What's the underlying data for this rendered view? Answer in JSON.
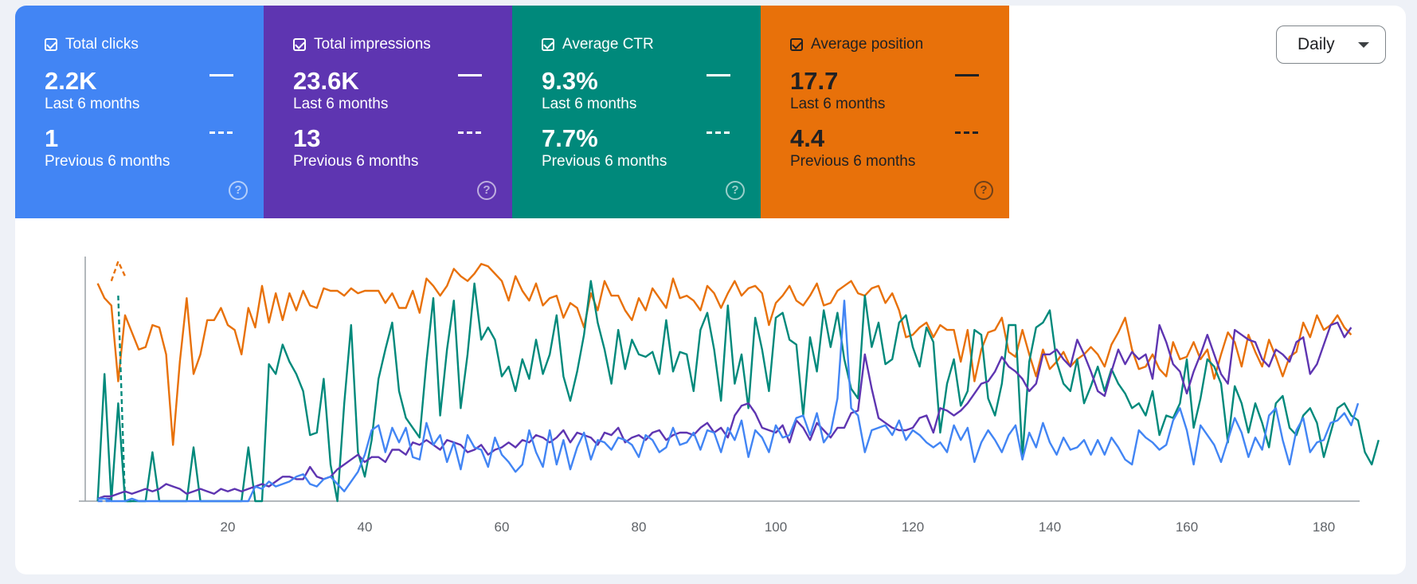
{
  "tiles": [
    {
      "id": "clicks",
      "label": "Total clicks",
      "current_value": "2.2K",
      "current_caption": "Last 6 months",
      "previous_value": "1",
      "previous_caption": "Previous 6 months",
      "color": "#4285f4",
      "text_color": "#ffffff"
    },
    {
      "id": "impressions",
      "label": "Total impressions",
      "current_value": "23.6K",
      "current_caption": "Last 6 months",
      "previous_value": "13",
      "previous_caption": "Previous 6 months",
      "color": "#5e35b1",
      "text_color": "#ffffff"
    },
    {
      "id": "ctr",
      "label": "Average CTR",
      "current_value": "9.3%",
      "current_caption": "Last 6 months",
      "previous_value": "7.7%",
      "previous_caption": "Previous 6 months",
      "color": "#00897b",
      "text_color": "#ffffff"
    },
    {
      "id": "position",
      "label": "Average position",
      "current_value": "17.7",
      "current_caption": "Last 6 months",
      "previous_value": "4.4",
      "previous_caption": "Previous 6 months",
      "color": "#e8710a",
      "text_color": "#202124"
    }
  ],
  "period_select": {
    "value": "Daily"
  },
  "chart_data": {
    "type": "line",
    "x": {
      "min": 0,
      "max": 185,
      "ticks": [
        20,
        40,
        60,
        80,
        100,
        120,
        140,
        160,
        180
      ]
    },
    "ylim": [
      0,
      100
    ],
    "y_axis_labels_shown": false,
    "grid": false,
    "note_units": "lines are drawn on independent unlabeled scales; values read as percent of plot height",
    "series": [
      {
        "id": "position",
        "color": "#e8710a",
        "style": "solid",
        "x_start": 1,
        "values": [
          89,
          83,
          80,
          49,
          76,
          69,
          62,
          63,
          72,
          71,
          60,
          23,
          57,
          83,
          52,
          60,
          74,
          74,
          79,
          72,
          70,
          60,
          79,
          71,
          88,
          73,
          85,
          74,
          85,
          78,
          86,
          80,
          79,
          87,
          86,
          86,
          84,
          87,
          85,
          86,
          86,
          86,
          81,
          85,
          79,
          79,
          86,
          77,
          91,
          88,
          84,
          88,
          95,
          92,
          90,
          93,
          97,
          96,
          93,
          90,
          82,
          92,
          86,
          82,
          89,
          80,
          83,
          84,
          75,
          81,
          79,
          71,
          85,
          78,
          90,
          84,
          84,
          78,
          74,
          83,
          78,
          87,
          83,
          79,
          91,
          83,
          84,
          82,
          78,
          88,
          85,
          79,
          85,
          90,
          84,
          87,
          88,
          85,
          72,
          81,
          84,
          88,
          82,
          80,
          84,
          89,
          80,
          81,
          86,
          88,
          90,
          85,
          84,
          87,
          88,
          81,
          85,
          78,
          67,
          68,
          71,
          73,
          67,
          72,
          70,
          70,
          57,
          70,
          49,
          62,
          69,
          70,
          75,
          61,
          59,
          70,
          60,
          51,
          62,
          54,
          57,
          61,
          55,
          58,
          60,
          63,
          60,
          55,
          64,
          69,
          75,
          62,
          54,
          55,
          60,
          54,
          51,
          65,
          58,
          59,
          65,
          58,
          62,
          50,
          60,
          69,
          65,
          55,
          68,
          61,
          55,
          66,
          59,
          51,
          59,
          61,
          73,
          67,
          76,
          70,
          72,
          76,
          71,
          68
        ]
      },
      {
        "id": "position-prev",
        "color": "#e8710a",
        "style": "dashed",
        "x_start": 3,
        "values": [
          90,
          98,
          92
        ]
      },
      {
        "id": "ctr",
        "color": "#00897b",
        "style": "solid",
        "x_start": 1,
        "values": [
          0,
          52,
          0,
          40,
          0,
          0,
          0,
          0,
          20,
          0,
          0,
          0,
          0,
          0,
          22,
          0,
          0,
          0,
          0,
          0,
          0,
          0,
          22,
          0,
          0,
          56,
          52,
          64,
          57,
          52,
          45,
          27,
          28,
          50,
          15,
          0,
          40,
          72,
          20,
          10,
          25,
          50,
          62,
          73,
          45,
          34,
          30,
          26,
          57,
          83,
          35,
          62,
          82,
          38,
          60,
          89,
          66,
          71,
          66,
          51,
          55,
          45,
          58,
          50,
          66,
          52,
          60,
          76,
          51,
          41,
          53,
          68,
          90,
          73,
          62,
          48,
          70,
          54,
          66,
          60,
          59,
          61,
          52,
          74,
          53,
          61,
          60,
          45,
          70,
          77,
          62,
          41,
          80,
          48,
          60,
          38,
          75,
          62,
          45,
          75,
          77,
          66,
          64,
          35,
          67,
          53,
          78,
          63,
          77,
          58,
          46,
          42,
          84,
          63,
          73,
          56,
          58,
          73,
          76,
          63,
          55,
          71,
          65,
          28,
          48,
          58,
          39,
          45,
          70,
          68,
          42,
          35,
          48,
          72,
          72,
          18,
          57,
          71,
          73,
          78,
          57,
          48,
          45,
          58,
          40,
          47,
          55,
          45,
          54,
          48,
          44,
          38,
          40,
          35,
          45,
          27,
          35,
          34,
          40,
          58,
          30,
          42,
          58,
          55,
          48,
          24,
          47,
          40,
          28,
          40,
          32,
          22,
          40,
          43,
          30,
          27,
          35,
          38,
          32,
          18,
          28,
          38,
          40,
          35,
          33,
          20,
          15,
          25
        ]
      },
      {
        "id": "ctr-prev",
        "color": "#00897b",
        "style": "dashed",
        "x_start": 4,
        "values": [
          84,
          0,
          0
        ]
      },
      {
        "id": "impressions",
        "color": "#5e35b1",
        "style": "solid",
        "x_start": 1,
        "values": [
          1,
          2,
          2,
          3,
          4,
          3,
          4,
          5,
          4,
          5,
          7,
          6,
          5,
          3,
          4,
          5,
          4,
          3,
          5,
          4,
          5,
          4,
          5,
          6,
          7,
          6,
          8,
          10,
          10,
          9,
          9,
          14,
          10,
          9,
          10,
          13,
          15,
          17,
          19,
          16,
          18,
          18,
          16,
          21,
          21,
          19,
          24,
          23,
          25,
          23,
          21,
          25,
          24,
          23,
          20,
          21,
          23,
          19,
          21,
          22,
          24,
          22,
          25,
          24,
          27,
          26,
          24,
          26,
          29,
          24,
          28,
          27,
          26,
          23,
          28,
          27,
          30,
          24,
          26,
          27,
          25,
          28,
          29,
          25,
          27,
          28,
          28,
          27,
          30,
          32,
          28,
          30,
          26,
          35,
          39,
          40,
          36,
          30,
          29,
          28,
          31,
          24,
          33,
          30,
          25,
          32,
          29,
          26,
          30,
          30,
          36,
          37,
          60,
          46,
          34,
          32,
          30,
          29,
          29,
          30,
          34,
          35,
          28,
          38,
          37,
          35,
          37,
          40,
          44,
          48,
          49,
          53,
          59,
          55,
          53,
          50,
          45,
          48,
          60,
          60,
          62,
          58,
          55,
          66,
          60,
          53,
          45,
          43,
          53,
          62,
          56,
          61,
          58,
          60,
          50,
          72,
          65,
          56,
          53,
          44,
          53,
          60,
          68,
          60,
          52,
          48,
          70,
          68,
          66,
          65,
          58,
          55,
          62,
          60,
          57,
          65,
          67,
          52,
          56,
          64,
          72,
          73,
          67,
          71
        ]
      },
      {
        "id": "impressions-prev",
        "color": "#5e35b1",
        "style": "dashed",
        "x_start": 1,
        "values": [
          1,
          1,
          1
        ]
      },
      {
        "id": "clicks",
        "color": "#4285f4",
        "style": "solid",
        "x_start": 1,
        "values": [
          1,
          1,
          0,
          0,
          0,
          1,
          0,
          0,
          0,
          0,
          0,
          0,
          0,
          0,
          0,
          0,
          0,
          0,
          0,
          0,
          0,
          0,
          0,
          6,
          5,
          8,
          6,
          7,
          8,
          10,
          11,
          7,
          6,
          9,
          10,
          7,
          4,
          8,
          12,
          19,
          29,
          31,
          20,
          30,
          24,
          30,
          18,
          17,
          32,
          23,
          27,
          16,
          24,
          13,
          27,
          22,
          21,
          14,
          26,
          19,
          16,
          12,
          15,
          29,
          20,
          14,
          29,
          15,
          25,
          13,
          22,
          28,
          17,
          25,
          24,
          21,
          26,
          25,
          23,
          18,
          27,
          25,
          20,
          22,
          30,
          23,
          24,
          28,
          21,
          29,
          28,
          20,
          30,
          25,
          33,
          18,
          29,
          26,
          20,
          31,
          26,
          27,
          34,
          35,
          27,
          36,
          24,
          28,
          42,
          82,
          38,
          35,
          20,
          29,
          30,
          31,
          27,
          33,
          25,
          29,
          27,
          24,
          22,
          24,
          20,
          31,
          25,
          30,
          16,
          24,
          29,
          25,
          20,
          27,
          31,
          17,
          28,
          22,
          32,
          24,
          19,
          26,
          21,
          22,
          25,
          19,
          25,
          19,
          26,
          22,
          17,
          15,
          29,
          26,
          24,
          21,
          23,
          33,
          38,
          29,
          15,
          31,
          27,
          23,
          16,
          25,
          34,
          28,
          18,
          26,
          21,
          35,
          38,
          25,
          15,
          29,
          34,
          20,
          24,
          25,
          32,
          33,
          36,
          31,
          40
        ]
      },
      {
        "id": "clicks-prev",
        "color": "#4285f4",
        "style": "dashed",
        "x_start": 1,
        "values": [
          0,
          0,
          0
        ]
      }
    ]
  }
}
